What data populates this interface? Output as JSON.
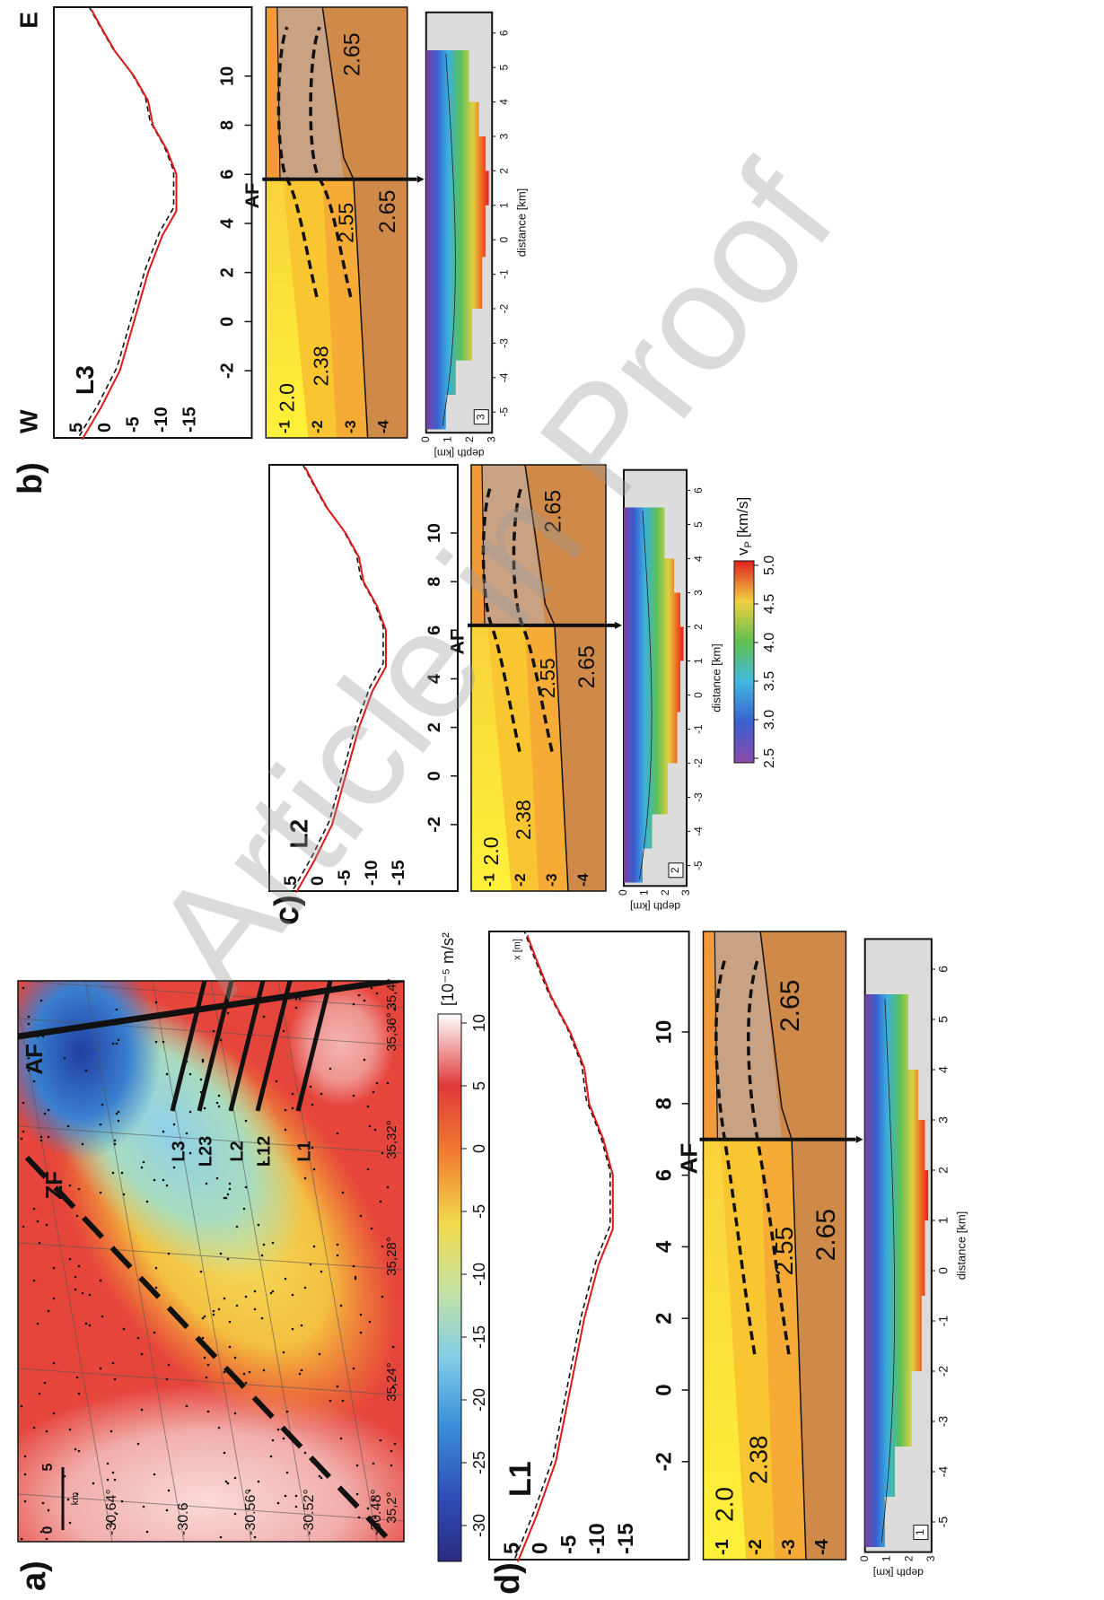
{
  "watermark": "Article in Proof",
  "map": {
    "label": "a)",
    "faults": {
      "af": "AF",
      "zf": "ZF"
    },
    "profile_lines": [
      "L3",
      "L23",
      "L2",
      "L12",
      "L1"
    ],
    "latitudes": [
      "-30.64°",
      "-30.6",
      "-30.56°",
      "-30.52°",
      "-30.48°"
    ],
    "longitudes": [
      "35,2°",
      "35,24°",
      "35,28°",
      "35,32°",
      "35,36°",
      "35,4°"
    ],
    "scale_bar": {
      "start": "0",
      "end": "5",
      "unit": "km"
    },
    "colorbar": {
      "unit": "[10⁻⁵ m/s²",
      "ticks": [
        "10",
        "5",
        "0",
        "-5",
        "-10",
        "-15",
        "-20",
        "-25",
        "-30"
      ]
    }
  },
  "profiles": [
    {
      "label": "d)",
      "name": "L1",
      "x_unit": "x [m]",
      "elevation_ticks": [
        "5",
        "0",
        "-5",
        "-10",
        "-15"
      ],
      "distance_ticks": [
        "-2",
        "0",
        "2",
        "4",
        "6",
        "8",
        "10"
      ],
      "fault": "AF",
      "depth_ticks": [
        "-1",
        "-2",
        "-3",
        "-4"
      ],
      "densities": {
        "upper": "2.0",
        "middle": "2.38",
        "lower": "2.55",
        "basement": "2.65",
        "basement_east": "2.65"
      },
      "tomography": {
        "id": "1",
        "depth_label": "depth [km]",
        "depth_ticks": [
          "0",
          "1",
          "2",
          "3"
        ],
        "distance_label": "distance [km]",
        "distance_ticks": [
          "-5",
          "-4",
          "-3",
          "-2",
          "-1",
          "0",
          "1",
          "2",
          "3",
          "4",
          "5",
          "6"
        ]
      }
    },
    {
      "label": "c)",
      "name": "L2",
      "elevation_ticks": [
        "5",
        "0",
        "-5",
        "-10",
        "-15"
      ],
      "distance_ticks": [
        "-2",
        "0",
        "2",
        "4",
        "6",
        "8",
        "10"
      ],
      "fault": "AF",
      "depth_ticks": [
        "-1",
        "-2",
        "-3",
        "-4"
      ],
      "densities": {
        "upper": "2.0",
        "middle": "2.38",
        "lower": "2.55",
        "basement": "2.65",
        "basement_east": "2.65"
      },
      "tomography": {
        "id": "2",
        "depth_label": "depth [km]",
        "depth_ticks": [
          "0",
          "1",
          "2",
          "3"
        ],
        "distance_label": "distance [km]",
        "distance_ticks": [
          "-5",
          "-4",
          "-3",
          "-2",
          "-1",
          "0",
          "1",
          "2",
          "3",
          "4",
          "5",
          "6"
        ]
      }
    },
    {
      "label": "b)",
      "name": "L3",
      "west": "W",
      "east": "E",
      "elevation_ticks": [
        "5",
        "0",
        "-5",
        "-10",
        "-15"
      ],
      "distance_ticks": [
        "-2",
        "0",
        "2",
        "4",
        "6",
        "8",
        "10"
      ],
      "fault": "AF",
      "depth_ticks": [
        "-1",
        "-2",
        "-3",
        "-4"
      ],
      "densities": {
        "upper": "2.0",
        "middle": "2.38",
        "lower": "2.55",
        "basement": "2.65",
        "basement_east": "2.65"
      },
      "tomography": {
        "id": "3",
        "depth_label": "depth [km]",
        "depth_ticks": [
          "0",
          "1",
          "2",
          "3"
        ],
        "distance_label": "distance [km]",
        "distance_ticks": [
          "-5",
          "-4",
          "-3",
          "-2",
          "-1",
          "0",
          "1",
          "2",
          "3",
          "4",
          "5",
          "6"
        ]
      }
    }
  ],
  "velocity_colorbar": {
    "symbol": "v",
    "subscript": "P",
    "unit": "[km/s]",
    "ticks": [
      "2.5",
      "3.0",
      "3.5",
      "4.0",
      "4.5",
      "5.0"
    ]
  }
}
